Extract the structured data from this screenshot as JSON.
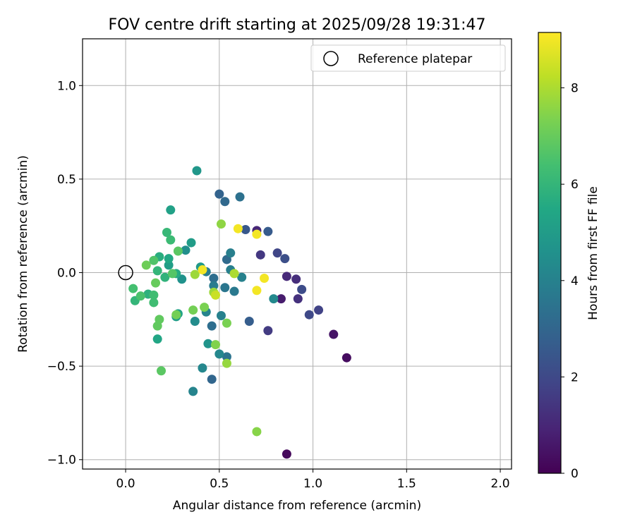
{
  "chart_data": {
    "type": "scatter",
    "title": "FOV centre drift starting at 2025/09/28 19:31:47",
    "xlabel": "Angular distance from reference (arcmin)",
    "ylabel": "Rotation from reference (arcmin)",
    "xlim": [
      -0.23,
      2.06
    ],
    "ylim": [
      -1.05,
      1.25
    ],
    "xticks": [
      0.0,
      0.5,
      1.0,
      1.5,
      2.0
    ],
    "xtick_labels": [
      "0.0",
      "0.5",
      "1.0",
      "1.5",
      "2.0"
    ],
    "yticks": [
      -1.0,
      -0.5,
      0.0,
      0.5,
      1.0
    ],
    "ytick_labels": [
      "−1.0",
      "−0.5",
      "0.0",
      "0.5",
      "1.0"
    ],
    "grid": true,
    "legend": {
      "placement": "top-right",
      "label": "Reference platepar"
    },
    "reference_point": {
      "x": 0.0,
      "y": 0.0
    },
    "colorbar": {
      "label": "Hours from first FF file",
      "range": [
        0,
        9.15
      ],
      "ticks": [
        0,
        2,
        4,
        6,
        8
      ],
      "tick_labels": [
        "0",
        "2",
        "4",
        "6",
        "8"
      ],
      "colormap": "viridis"
    },
    "points": [
      {
        "x": 0.86,
        "y": -0.97,
        "c": 0.2
      },
      {
        "x": 1.18,
        "y": -0.455,
        "c": 0.3
      },
      {
        "x": 1.11,
        "y": -0.33,
        "c": 0.5
      },
      {
        "x": 0.83,
        "y": -0.14,
        "c": 0.7
      },
      {
        "x": 0.7,
        "y": 0.225,
        "c": 1.0
      },
      {
        "x": 0.86,
        "y": -0.02,
        "c": 1.1
      },
      {
        "x": 0.91,
        "y": -0.035,
        "c": 1.2
      },
      {
        "x": 0.92,
        "y": -0.14,
        "c": 1.3
      },
      {
        "x": 0.72,
        "y": 0.095,
        "c": 1.5
      },
      {
        "x": 0.76,
        "y": -0.31,
        "c": 1.6
      },
      {
        "x": 1.03,
        "y": -0.2,
        "c": 1.8
      },
      {
        "x": 0.81,
        "y": 0.105,
        "c": 1.9
      },
      {
        "x": 0.98,
        "y": -0.225,
        "c": 2.0
      },
      {
        "x": 0.94,
        "y": -0.09,
        "c": 2.1
      },
      {
        "x": 0.85,
        "y": 0.075,
        "c": 2.2
      },
      {
        "x": 0.64,
        "y": 0.23,
        "c": 2.5
      },
      {
        "x": 0.76,
        "y": 0.22,
        "c": 2.6
      },
      {
        "x": 0.66,
        "y": -0.26,
        "c": 2.7
      },
      {
        "x": 0.5,
        "y": 0.42,
        "c": 2.9
      },
      {
        "x": 0.46,
        "y": -0.57,
        "c": 3.0
      },
      {
        "x": 0.53,
        "y": 0.38,
        "c": 3.1
      },
      {
        "x": 0.54,
        "y": 0.07,
        "c": 3.2
      },
      {
        "x": 0.46,
        "y": -0.285,
        "c": 3.3
      },
      {
        "x": 0.47,
        "y": -0.03,
        "c": 3.3
      },
      {
        "x": 0.61,
        "y": 0.405,
        "c": 3.4
      },
      {
        "x": 0.54,
        "y": -0.45,
        "c": 3.5
      },
      {
        "x": 0.53,
        "y": -0.08,
        "c": 3.6
      },
      {
        "x": 0.58,
        "y": -0.1,
        "c": 3.7
      },
      {
        "x": 0.43,
        "y": 0.005,
        "c": 3.8
      },
      {
        "x": 0.47,
        "y": -0.07,
        "c": 3.8
      },
      {
        "x": 0.56,
        "y": 0.105,
        "c": 3.9
      },
      {
        "x": 0.56,
        "y": 0.015,
        "c": 3.9
      },
      {
        "x": 0.62,
        "y": -0.025,
        "c": 4.0
      },
      {
        "x": 0.51,
        "y": -0.23,
        "c": 4.0
      },
      {
        "x": 0.43,
        "y": -0.21,
        "c": 4.1
      },
      {
        "x": 0.36,
        "y": -0.635,
        "c": 4.1
      },
      {
        "x": 0.41,
        "y": -0.51,
        "c": 4.2
      },
      {
        "x": 0.5,
        "y": -0.435,
        "c": 4.2
      },
      {
        "x": 0.79,
        "y": -0.14,
        "c": 4.3
      },
      {
        "x": 0.37,
        "y": -0.26,
        "c": 4.4
      },
      {
        "x": 0.32,
        "y": 0.12,
        "c": 4.5
      },
      {
        "x": 0.3,
        "y": -0.035,
        "c": 4.6
      },
      {
        "x": 0.44,
        "y": -0.38,
        "c": 4.7
      },
      {
        "x": 0.38,
        "y": 0.545,
        "c": 4.8
      },
      {
        "x": 0.4,
        "y": 0.03,
        "c": 4.9
      },
      {
        "x": 0.35,
        "y": 0.16,
        "c": 5.0
      },
      {
        "x": 0.27,
        "y": -0.235,
        "c": 5.1
      },
      {
        "x": 0.23,
        "y": 0.04,
        "c": 5.1
      },
      {
        "x": 0.24,
        "y": 0.335,
        "c": 5.2
      },
      {
        "x": 0.28,
        "y": -0.22,
        "c": 5.3
      },
      {
        "x": 0.17,
        "y": -0.355,
        "c": 5.4
      },
      {
        "x": 0.23,
        "y": 0.075,
        "c": 5.5
      },
      {
        "x": 0.27,
        "y": -0.005,
        "c": 5.6
      },
      {
        "x": 0.18,
        "y": 0.085,
        "c": 5.7
      },
      {
        "x": 0.12,
        "y": -0.115,
        "c": 5.8
      },
      {
        "x": 0.21,
        "y": -0.025,
        "c": 5.9
      },
      {
        "x": 0.17,
        "y": 0.01,
        "c": 6.0
      },
      {
        "x": 0.05,
        "y": -0.15,
        "c": 6.0
      },
      {
        "x": 0.22,
        "y": 0.215,
        "c": 6.1
      },
      {
        "x": 0.24,
        "y": 0.175,
        "c": 6.2
      },
      {
        "x": 0.15,
        "y": -0.16,
        "c": 6.3
      },
      {
        "x": 0.15,
        "y": -0.12,
        "c": 6.3
      },
      {
        "x": 0.04,
        "y": -0.085,
        "c": 6.4
      },
      {
        "x": 0.08,
        "y": -0.125,
        "c": 6.5
      },
      {
        "x": 0.15,
        "y": 0.065,
        "c": 6.6
      },
      {
        "x": 0.25,
        "y": -0.005,
        "c": 6.7
      },
      {
        "x": 0.19,
        "y": -0.525,
        "c": 6.8
      },
      {
        "x": 0.28,
        "y": 0.115,
        "c": 6.8
      },
      {
        "x": 0.17,
        "y": -0.285,
        "c": 6.9
      },
      {
        "x": 0.18,
        "y": -0.25,
        "c": 6.9
      },
      {
        "x": 0.16,
        "y": -0.055,
        "c": 7.0
      },
      {
        "x": 0.11,
        "y": 0.04,
        "c": 7.1
      },
      {
        "x": 0.36,
        "y": -0.2,
        "c": 7.2
      },
      {
        "x": 0.27,
        "y": -0.225,
        "c": 7.2
      },
      {
        "x": 0.42,
        "y": -0.185,
        "c": 7.3
      },
      {
        "x": 0.54,
        "y": -0.27,
        "c": 7.3
      },
      {
        "x": 0.48,
        "y": -0.385,
        "c": 7.4
      },
      {
        "x": 0.7,
        "y": -0.85,
        "c": 7.5
      },
      {
        "x": 0.51,
        "y": 0.26,
        "c": 7.6
      },
      {
        "x": 0.54,
        "y": -0.485,
        "c": 7.7
      },
      {
        "x": 0.37,
        "y": -0.01,
        "c": 7.8
      },
      {
        "x": 0.47,
        "y": -0.105,
        "c": 7.8
      },
      {
        "x": 0.58,
        "y": -0.005,
        "c": 8.0
      },
      {
        "x": 0.48,
        "y": -0.12,
        "c": 8.4
      },
      {
        "x": 0.41,
        "y": 0.015,
        "c": 9.0
      },
      {
        "x": 0.6,
        "y": 0.235,
        "c": 9.0
      },
      {
        "x": 0.7,
        "y": 0.205,
        "c": 9.0
      },
      {
        "x": 0.74,
        "y": -0.03,
        "c": 9.0
      },
      {
        "x": 0.7,
        "y": -0.095,
        "c": 9.0
      }
    ]
  }
}
